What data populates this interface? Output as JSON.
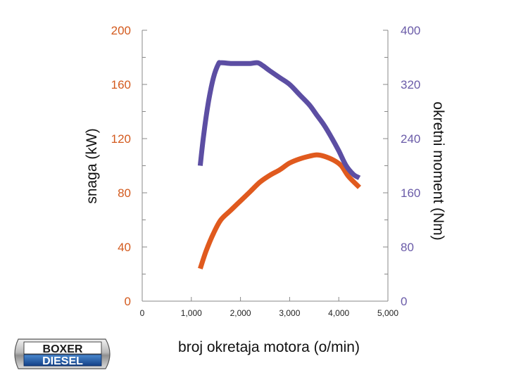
{
  "chart_data": {
    "type": "line",
    "xlabel": "broj okretaja motora (o/min)",
    "ylabel_left": "snaga (kW)",
    "ylabel_right": "okretni moment (Nm)",
    "xlim": [
      0,
      5000
    ],
    "ylim_left": [
      0,
      200
    ],
    "ylim_right": [
      0,
      400
    ],
    "x_ticks": [
      0,
      1000,
      2000,
      3000,
      4000,
      5000
    ],
    "x_tick_labels": [
      "0",
      "1,000",
      "2,000",
      "3,000",
      "4,000",
      "5,000"
    ],
    "y_left_ticks": [
      0,
      40,
      80,
      120,
      160,
      200
    ],
    "y_left_tick_labels": [
      "0",
      "40",
      "80",
      "120",
      "160",
      "200"
    ],
    "y_right_ticks": [
      0,
      80,
      160,
      240,
      320,
      400
    ],
    "y_right_tick_labels": [
      "0",
      "80",
      "160",
      "240",
      "320",
      "400"
    ],
    "grid": false,
    "series": [
      {
        "axis": "left",
        "color": "#e05a1e",
        "x": [
          1180,
          1300,
          1450,
          1600,
          1800,
          2000,
          2200,
          2400,
          2600,
          2800,
          3000,
          3200,
          3400,
          3550,
          3700,
          3900,
          4050,
          4200,
          4420
        ],
        "values": [
          24,
          37,
          50,
          60,
          67,
          74,
          81,
          88,
          93,
          97,
          102,
          105,
          107,
          108,
          107,
          104,
          100,
          92,
          84
        ]
      },
      {
        "axis": "right",
        "color": "#5c4ea3",
        "x": [
          1180,
          1250,
          1350,
          1450,
          1550,
          1600,
          1800,
          2000,
          2200,
          2350,
          2450,
          2600,
          2800,
          3000,
          3200,
          3400,
          3550,
          3700,
          3850,
          4000,
          4150,
          4300,
          4420
        ],
        "values": [
          200,
          245,
          295,
          330,
          350,
          352,
          351,
          351,
          351,
          352,
          348,
          340,
          330,
          320,
          305,
          290,
          275,
          260,
          242,
          222,
          200,
          187,
          182
        ]
      }
    ]
  },
  "logo": {
    "line1": "BOXER",
    "line2": "DIESEL"
  },
  "colors": {
    "power": "#e05a1e",
    "torque": "#5c4ea3",
    "left_tick": "#d35a1e",
    "right_tick": "#6a5ba8",
    "axis": "#888888"
  }
}
